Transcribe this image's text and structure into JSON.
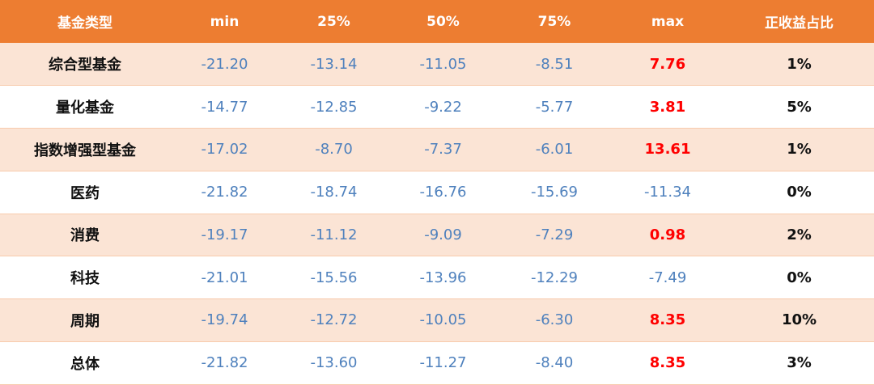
{
  "header": {
    "type": "基金类型",
    "min": "min",
    "p25": "25%",
    "p50": "50%",
    "p75": "75%",
    "max": "max",
    "ratio": "正收益占比"
  },
  "rows": [
    {
      "type": "综合型基金",
      "min": "-21.20",
      "p25": "-13.14",
      "p50": "-11.05",
      "p75": "-8.51",
      "max": "7.76",
      "max_positive": true,
      "ratio": "1%"
    },
    {
      "type": "量化基金",
      "min": "-14.77",
      "p25": "-12.85",
      "p50": "-9.22",
      "p75": "-5.77",
      "max": "3.81",
      "max_positive": true,
      "ratio": "5%"
    },
    {
      "type": "指数增强型基金",
      "min": "-17.02",
      "p25": "-8.70",
      "p50": "-7.37",
      "p75": "-6.01",
      "max": "13.61",
      "max_positive": true,
      "ratio": "1%"
    },
    {
      "type": "医药",
      "min": "-21.82",
      "p25": "-18.74",
      "p50": "-16.76",
      "p75": "-15.69",
      "max": "-11.34",
      "max_positive": false,
      "ratio": "0%"
    },
    {
      "type": "消费",
      "min": "-19.17",
      "p25": "-11.12",
      "p50": "-9.09",
      "p75": "-7.29",
      "max": "0.98",
      "max_positive": true,
      "ratio": "2%"
    },
    {
      "type": "科技",
      "min": "-21.01",
      "p25": "-15.56",
      "p50": "-13.96",
      "p75": "-12.29",
      "max": "-7.49",
      "max_positive": false,
      "ratio": "0%"
    },
    {
      "type": "周期",
      "min": "-19.74",
      "p25": "-12.72",
      "p50": "-10.05",
      "p75": "-6.30",
      "max": "8.35",
      "max_positive": true,
      "ratio": "10%"
    },
    {
      "type": "总体",
      "min": "-21.82",
      "p25": "-13.60",
      "p50": "-11.27",
      "p75": "-8.40",
      "max": "8.35",
      "max_positive": true,
      "ratio": "3%"
    }
  ],
  "colors": {
    "header_bg": "#ed7d31",
    "stripe_bg": "#fbe4d5",
    "negative_text": "#4f81bd",
    "positive_text": "#ff0000"
  }
}
